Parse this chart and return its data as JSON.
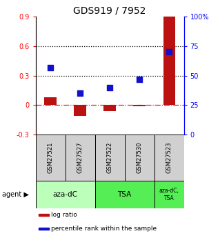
{
  "title": "GDS919 / 7952",
  "samples": [
    "GSM27521",
    "GSM27527",
    "GSM27522",
    "GSM27530",
    "GSM27523"
  ],
  "log_ratios": [
    0.08,
    -0.11,
    -0.06,
    -0.01,
    0.9
  ],
  "percentile_ranks": [
    57,
    35,
    40,
    47,
    70
  ],
  "ylim_left": [
    -0.3,
    0.9
  ],
  "ylim_right": [
    0,
    100
  ],
  "yticks_left": [
    -0.3,
    0.0,
    0.3,
    0.6,
    0.9
  ],
  "yticks_right": [
    0,
    25,
    50,
    75,
    100
  ],
  "hlines": [
    0.3,
    0.6
  ],
  "bar_color": "#bb1111",
  "dot_color": "#1111cc",
  "zero_line_color": "#cc2222",
  "agent_groups": [
    {
      "label": "aza-dC",
      "start": 0,
      "end": 1,
      "color": "#bbffbb"
    },
    {
      "label": "TSA",
      "start": 2,
      "end": 3,
      "color": "#55ee55"
    },
    {
      "label": "aza-dC,\nTSA",
      "start": 4,
      "end": 4,
      "color": "#55ee55"
    }
  ],
  "sample_box_color": "#d0d0d0",
  "legend_items": [
    {
      "color": "#bb1111",
      "label": "log ratio"
    },
    {
      "color": "#1111cc",
      "label": "percentile rank within the sample"
    }
  ],
  "title_fontsize": 10,
  "tick_fontsize": 7,
  "label_fontsize": 7,
  "bar_width": 0.4,
  "dot_size": 40
}
